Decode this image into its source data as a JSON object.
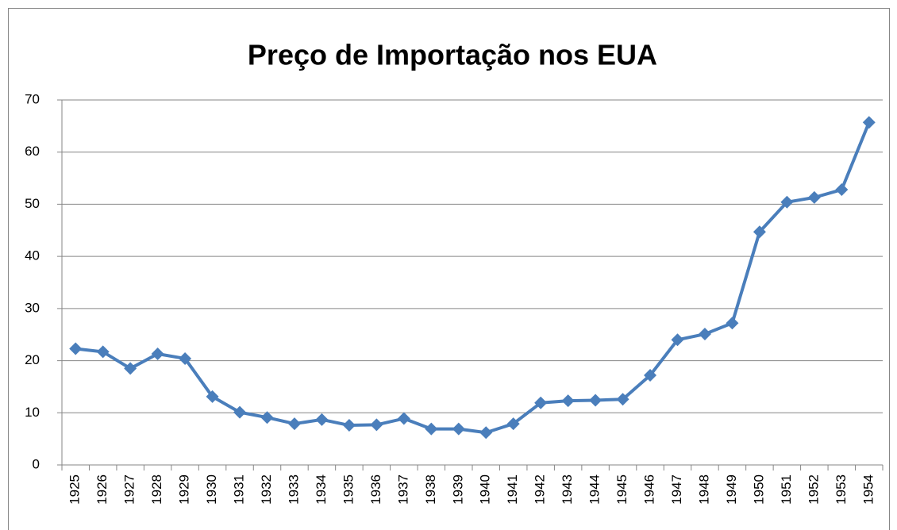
{
  "chart_data": {
    "type": "line",
    "title": "Preço de Importação nos EUA",
    "categories": [
      "1925",
      "1926",
      "1927",
      "1928",
      "1929",
      "1930",
      "1931",
      "1932",
      "1933",
      "1934",
      "1935",
      "1936",
      "1937",
      "1938",
      "1939",
      "1940",
      "1941",
      "1942",
      "1943",
      "1944",
      "1945",
      "1946",
      "1947",
      "1948",
      "1949",
      "1950",
      "1951",
      "1952",
      "1953",
      "1954"
    ],
    "values": [
      22.3,
      21.7,
      18.5,
      21.3,
      20.4,
      13.1,
      10.1,
      9.1,
      7.9,
      8.7,
      7.6,
      7.7,
      8.9,
      6.9,
      6.9,
      6.2,
      7.9,
      11.9,
      12.3,
      12.4,
      12.6,
      17.2,
      24.0,
      25.1,
      27.2,
      44.7,
      50.4,
      51.3,
      52.8,
      65.7
    ],
    "color": "#4a7ebb",
    "ylim": [
      0,
      70
    ],
    "yticks": [
      0,
      10,
      20,
      30,
      40,
      50,
      60,
      70
    ],
    "grid": true
  }
}
